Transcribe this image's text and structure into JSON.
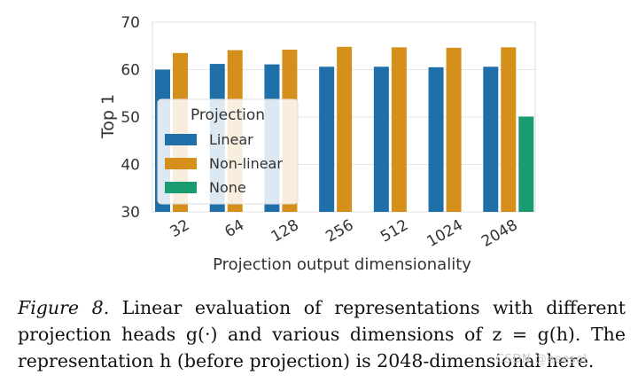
{
  "chart_data": {
    "type": "bar",
    "title": "",
    "xlabel": "Projection output dimensionality",
    "ylabel": "Top 1",
    "categories": [
      "32",
      "64",
      "128",
      "256",
      "512",
      "1024",
      "2048"
    ],
    "ylim": [
      30,
      70
    ],
    "yticks": [
      "30",
      "40",
      "50",
      "60",
      "70"
    ],
    "grid": true,
    "legend": {
      "title": "Projection",
      "placement": "center-left"
    },
    "series": [
      {
        "name": "Linear",
        "color": "#1f6fa8",
        "values": [
          60.0,
          61.2,
          61.1,
          60.6,
          60.6,
          60.5,
          60.6
        ]
      },
      {
        "name": "Non-linear",
        "color": "#d58f1b",
        "values": [
          63.5,
          64.1,
          64.2,
          64.8,
          64.7,
          64.6,
          64.7
        ]
      },
      {
        "name": "None",
        "color": "#1b9b72",
        "values": [
          null,
          null,
          null,
          null,
          null,
          null,
          50.1
        ]
      }
    ]
  },
  "caption": {
    "label": "Figure 8",
    "text": ". Linear evaluation of representations with different projection heads g(·) and various dimensions of z = g(h). The representation h (before projection) is 2048-dimensional here."
  },
  "watermark": "CSDN @eeesol"
}
